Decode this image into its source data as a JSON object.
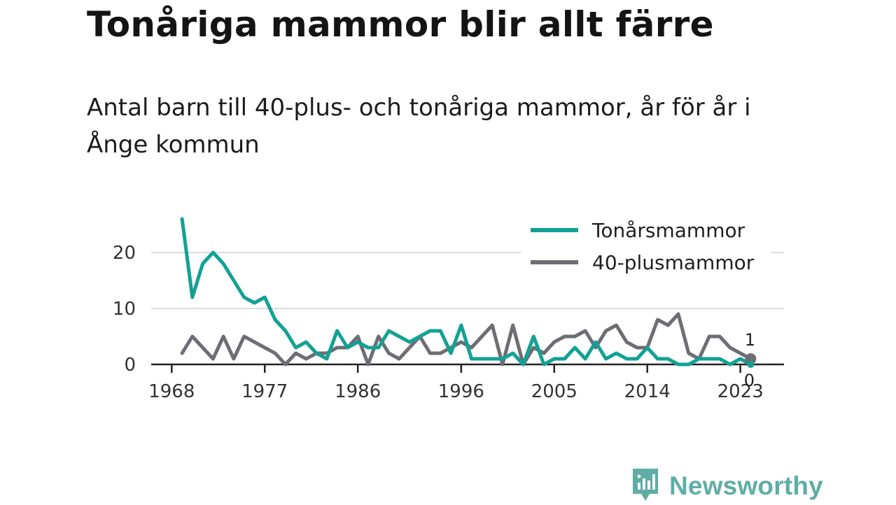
{
  "title": "Tonåriga mammor blir allt färre",
  "subtitle": "Antal barn till 40-plus- och tonåriga mammor, år för år i Ånge kommun",
  "brand": {
    "name": "Newsworthy",
    "icon": "newsworthy-logo-icon",
    "color": "#5fada5"
  },
  "chart_data": {
    "type": "line",
    "title": "Tonåriga mammor blir allt färre",
    "subtitle": "Antal barn till 40-plus- och tonåriga mammor, år för år i Ånge kommun",
    "xlabel": "",
    "ylabel": "",
    "xlim": [
      1968,
      2024
    ],
    "ylim": [
      0,
      27
    ],
    "x_ticks": [
      1968,
      1977,
      1986,
      1996,
      2005,
      2014,
      2023
    ],
    "y_ticks": [
      0,
      10,
      20
    ],
    "grid": "horizontal",
    "legend_position": "top-right",
    "x": [
      1969,
      1970,
      1971,
      1972,
      1973,
      1974,
      1975,
      1976,
      1977,
      1978,
      1979,
      1980,
      1981,
      1982,
      1983,
      1984,
      1985,
      1986,
      1987,
      1988,
      1989,
      1990,
      1991,
      1992,
      1993,
      1994,
      1995,
      1996,
      1997,
      1998,
      1999,
      2000,
      2001,
      2002,
      2003,
      2004,
      2005,
      2006,
      2007,
      2008,
      2009,
      2010,
      2011,
      2012,
      2013,
      2014,
      2015,
      2016,
      2017,
      2018,
      2019,
      2020,
      2021,
      2022,
      2023,
      2024
    ],
    "series": [
      {
        "name": "Tonårsmammor",
        "color": "#12a195",
        "values": [
          26,
          12,
          18,
          20,
          18,
          15,
          12,
          11,
          12,
          8,
          6,
          3,
          4,
          2,
          1,
          6,
          3,
          4,
          3,
          3,
          6,
          5,
          4,
          5,
          6,
          6,
          2,
          7,
          1,
          1,
          1,
          1,
          2,
          0,
          5,
          0,
          1,
          1,
          3,
          1,
          4,
          1,
          2,
          1,
          1,
          3,
          1,
          1,
          0,
          0,
          1,
          1,
          1,
          0,
          1,
          0
        ],
        "end_label": "0"
      },
      {
        "name": "40-plusmammor",
        "color": "#6e6d73",
        "values": [
          2,
          5,
          3,
          1,
          5,
          1,
          5,
          4,
          3,
          2,
          0,
          2,
          1,
          2,
          2,
          3,
          3,
          5,
          0,
          5,
          2,
          1,
          3,
          5,
          2,
          2,
          3,
          4,
          3,
          5,
          7,
          0,
          7,
          0,
          3,
          2,
          4,
          5,
          5,
          6,
          3,
          6,
          7,
          4,
          3,
          3,
          8,
          7,
          9,
          2,
          1,
          5,
          5,
          3,
          2,
          1
        ],
        "end_label": "1"
      }
    ]
  }
}
